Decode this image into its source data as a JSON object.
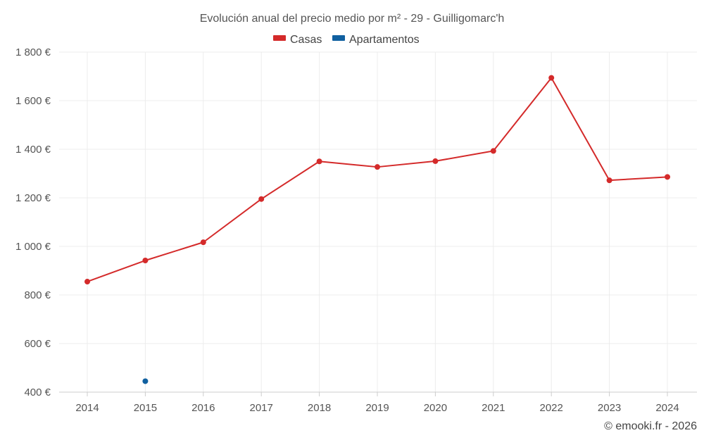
{
  "chart_data": {
    "type": "line",
    "title": "Evolución anual del precio medio por m² - 29 - Guilligomarc'h",
    "x": [
      "2014",
      "2015",
      "2016",
      "2017",
      "2018",
      "2019",
      "2020",
      "2021",
      "2022",
      "2023",
      "2024"
    ],
    "series": [
      {
        "name": "Casas",
        "color": "#d42a2a",
        "values": [
          855,
          942,
          1017,
          1195,
          1350,
          1327,
          1351,
          1393,
          1694,
          1272,
          1286
        ]
      },
      {
        "name": "Apartamentos",
        "color": "#1060a0",
        "values": [
          null,
          445,
          null,
          null,
          null,
          null,
          null,
          null,
          null,
          null,
          null
        ]
      }
    ],
    "ylim": [
      400,
      1800
    ],
    "yticks": [
      400,
      600,
      800,
      1000,
      1200,
      1400,
      1600,
      1800
    ],
    "ytick_labels": [
      "400 €",
      "600 €",
      "800 €",
      "1 000 €",
      "1 200 €",
      "1 400 €",
      "1 600 €",
      "1 800 €"
    ],
    "grid": true,
    "legend_position": "top-center"
  },
  "credit": "© emooki.fr - 2026"
}
